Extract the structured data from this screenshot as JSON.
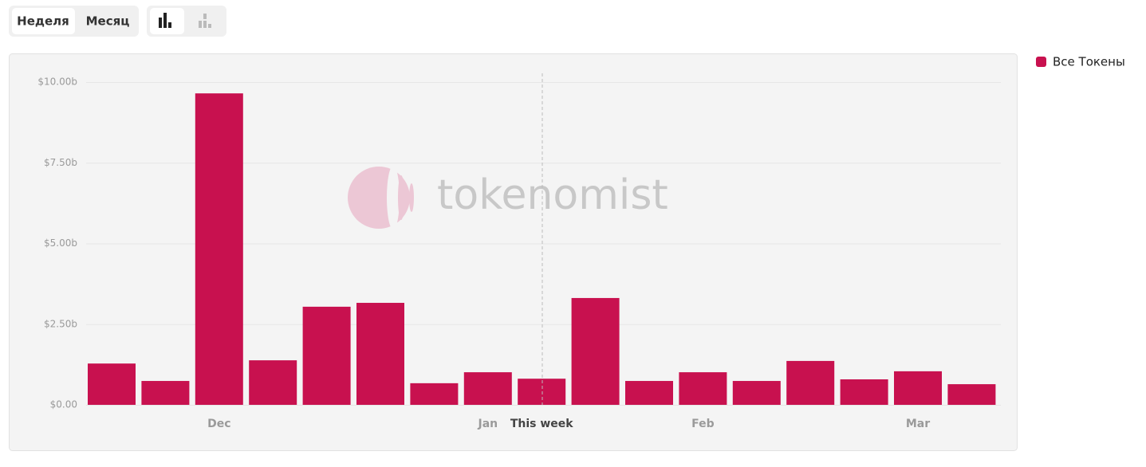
{
  "controls": {
    "period_buttons": [
      "Неделя",
      "Месяц"
    ]
  },
  "watermark": "tokenomist",
  "chart_data": {
    "type": "bar",
    "categories": [
      null,
      null,
      "Dec",
      null,
      null,
      null,
      null,
      "Jan",
      "This week",
      null,
      null,
      "Feb",
      null,
      null,
      null,
      "Mar",
      null
    ],
    "series": [
      {
        "name": "Все Токены",
        "color": "#c8114f",
        "values": [
          1.28,
          0.74,
          9.65,
          1.38,
          3.04,
          3.16,
          0.67,
          1.01,
          0.81,
          3.31,
          0.74,
          1.01,
          0.74,
          1.36,
          0.79,
          1.04,
          0.64
        ]
      }
    ],
    "ylim": [
      0,
      10
    ],
    "yticks": [
      {
        "value": 0,
        "label": "$0.00"
      },
      {
        "value": 2.5,
        "label": "$2.50b"
      },
      {
        "value": 5,
        "label": "$5.00b"
      },
      {
        "value": 7.5,
        "label": "$7.50b"
      },
      {
        "value": 10,
        "label": "$10.00b"
      }
    ],
    "grid": true,
    "legend": "top-right"
  }
}
